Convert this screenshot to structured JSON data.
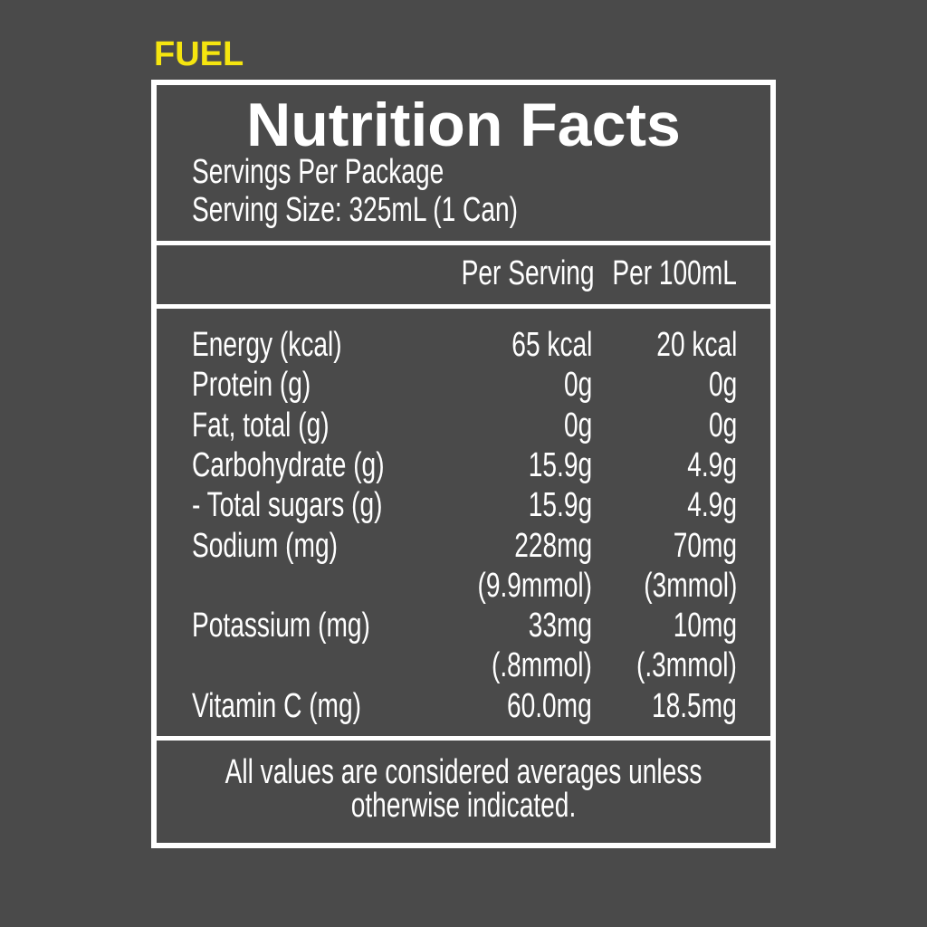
{
  "brand": "FUEL",
  "title": "Nutrition Facts",
  "servings_per_package": "Servings Per Package",
  "serving_size": "Serving Size: 325mL (1 Can)",
  "columns": {
    "per_serving": "Per Serving",
    "per_100ml": "Per 100mL"
  },
  "rows": [
    {
      "label": "Energy (kcal)",
      "per_serving": "65 kcal",
      "per_100ml": "20 kcal"
    },
    {
      "label": "Protein (g)",
      "per_serving": "0g",
      "per_100ml": "0g"
    },
    {
      "label": "Fat, total (g)",
      "per_serving": "0g",
      "per_100ml": "0g"
    },
    {
      "label": "Carbohydrate (g)",
      "per_serving": "15.9g",
      "per_100ml": "4.9g"
    },
    {
      "label": "- Total sugars (g)",
      "per_serving": "15.9g",
      "per_100ml": "4.9g"
    },
    {
      "label": "Sodium (mg)",
      "per_serving": "228mg",
      "per_100ml": "70mg"
    },
    {
      "label": "",
      "per_serving": "(9.9mmol)",
      "per_100ml": "(3mmol)"
    },
    {
      "label": "Potassium (mg)",
      "per_serving": "33mg",
      "per_100ml": "10mg"
    },
    {
      "label": "",
      "per_serving": "(.8mmol)",
      "per_100ml": "(.3mmol)"
    },
    {
      "label": "Vitamin C (mg)",
      "per_serving": "60.0mg",
      "per_100ml": "18.5mg"
    }
  ],
  "footer": {
    "line1": "All values are considered averages unless",
    "line2": "otherwise indicated."
  },
  "colors": {
    "background": "#4a4a4a",
    "brand": "#f5e50f",
    "text": "#ffffff"
  }
}
